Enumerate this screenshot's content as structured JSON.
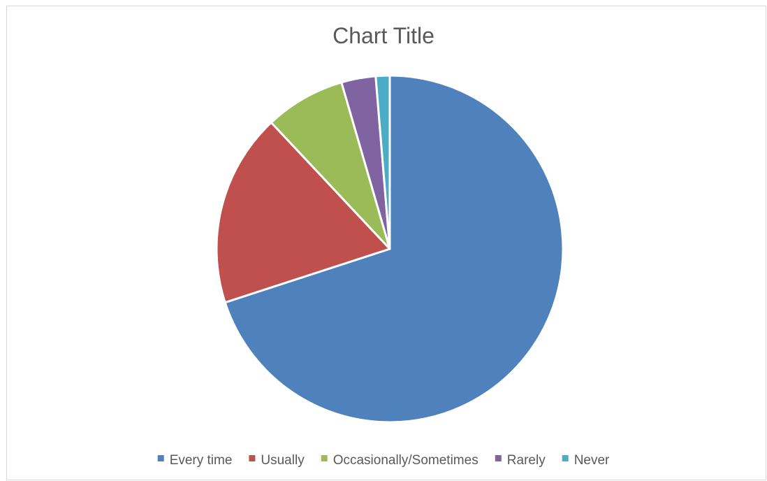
{
  "chart_data": {
    "type": "pie",
    "title": "Chart Title",
    "categories": [
      "Every time",
      "Usually",
      "Occasionally/Sometimes",
      "Rarely",
      "Never"
    ],
    "values": [
      70,
      18,
      7.5,
      3.2,
      1.3
    ],
    "colors": [
      "#4F81BD",
      "#C0504D",
      "#9BBB59",
      "#8064A2",
      "#4BACC6"
    ],
    "start_angle": "12 o'clock",
    "direction": "clockwise",
    "legend": "bottom"
  }
}
